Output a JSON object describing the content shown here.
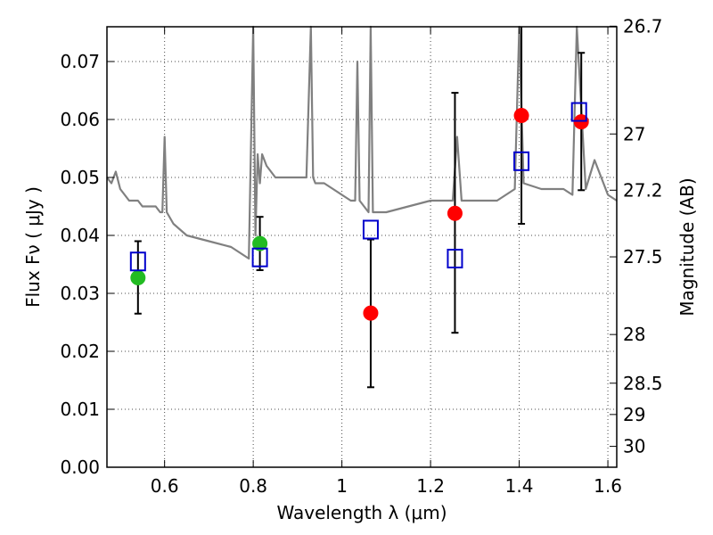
{
  "chart_data": {
    "type": "scatter",
    "xlabel": "Wavelength  λ (μm)",
    "ylabel": "Flux  Fν  ( μJy )",
    "ylabel_right": "Magnitude (AB)",
    "xlim": [
      0.47,
      1.62
    ],
    "ylim": [
      0.0,
      0.076
    ],
    "x_ticks": [
      0.6,
      0.8,
      1.0,
      1.2,
      1.4,
      1.6
    ],
    "x_tick_labels": [
      "0.6",
      "0.8",
      "1",
      "1.2",
      "1.4",
      "1.6"
    ],
    "y_ticks": [
      0.0,
      0.01,
      0.02,
      0.03,
      0.04,
      0.05,
      0.06,
      0.07
    ],
    "y_tick_labels": [
      "0.00",
      "0.01",
      "0.02",
      "0.03",
      "0.04",
      "0.05",
      "0.06",
      "0.07"
    ],
    "right_ticks": [
      {
        "label": "26.7",
        "flux": 0.0761
      },
      {
        "label": "27",
        "flux": 0.0575
      },
      {
        "label": "27.2",
        "flux": 0.0478
      },
      {
        "label": "27.5",
        "flux": 0.0363
      },
      {
        "label": "28",
        "flux": 0.0229
      },
      {
        "label": "28.5",
        "flux": 0.0145
      },
      {
        "label": "29",
        "flux": 0.0091
      },
      {
        "label": "30",
        "flux": 0.0036
      }
    ],
    "grid": true,
    "series": [
      {
        "kind": "spectrum",
        "color": "#808080",
        "x": [
          0.47,
          0.48,
          0.49,
          0.5,
          0.51,
          0.52,
          0.53,
          0.54,
          0.55,
          0.56,
          0.57,
          0.58,
          0.59,
          0.595,
          0.6,
          0.605,
          0.62,
          0.65,
          0.7,
          0.75,
          0.79,
          0.8,
          0.805,
          0.81,
          0.815,
          0.82,
          0.83,
          0.85,
          0.88,
          0.92,
          0.93,
          0.935,
          0.94,
          0.96,
          0.98,
          1.0,
          1.02,
          1.03,
          1.035,
          1.04,
          1.05,
          1.06,
          1.065,
          1.07,
          1.08,
          1.1,
          1.15,
          1.2,
          1.25,
          1.26,
          1.27,
          1.3,
          1.35,
          1.39,
          1.4,
          1.41,
          1.45,
          1.5,
          1.52,
          1.53,
          1.55,
          1.57,
          1.6,
          1.62
        ],
        "y": [
          0.05,
          0.049,
          0.051,
          0.048,
          0.047,
          0.046,
          0.046,
          0.046,
          0.045,
          0.045,
          0.045,
          0.045,
          0.044,
          0.044,
          0.057,
          0.044,
          0.042,
          0.04,
          0.039,
          0.038,
          0.036,
          0.076,
          0.04,
          0.054,
          0.049,
          0.054,
          0.052,
          0.05,
          0.05,
          0.05,
          0.076,
          0.05,
          0.049,
          0.049,
          0.048,
          0.047,
          0.046,
          0.046,
          0.07,
          0.046,
          0.045,
          0.044,
          0.076,
          0.044,
          0.044,
          0.044,
          0.045,
          0.046,
          0.046,
          0.057,
          0.046,
          0.046,
          0.046,
          0.048,
          0.076,
          0.049,
          0.048,
          0.048,
          0.047,
          0.076,
          0.048,
          0.053,
          0.047,
          0.046
        ]
      },
      {
        "kind": "model_squares",
        "color": "#0000cc",
        "points": [
          {
            "x": 0.54,
            "y": 0.0355
          },
          {
            "x": 0.815,
            "y": 0.0362
          },
          {
            "x": 1.065,
            "y": 0.041
          },
          {
            "x": 1.255,
            "y": 0.036
          },
          {
            "x": 1.405,
            "y": 0.0528
          },
          {
            "x": 1.535,
            "y": 0.0613
          }
        ]
      },
      {
        "kind": "detections",
        "color": "#22bb22",
        "points": [
          {
            "x": 0.54,
            "y": 0.0327,
            "err_low": 0.0265,
            "err_high": 0.039
          },
          {
            "x": 0.815,
            "y": 0.0386,
            "err_low": 0.034,
            "err_high": 0.0432
          }
        ]
      },
      {
        "kind": "low_significance",
        "color": "#ff0000",
        "points": [
          {
            "x": 1.065,
            "y": 0.0266,
            "err_low": 0.0138,
            "err_high": 0.0393
          },
          {
            "x": 1.255,
            "y": 0.0438,
            "err_low": 0.0232,
            "err_high": 0.0646
          },
          {
            "x": 1.405,
            "y": 0.0607,
            "err_low": 0.042,
            "err_high": 0.076
          },
          {
            "x": 1.54,
            "y": 0.0596,
            "err_low": 0.0478,
            "err_high": 0.0715
          }
        ]
      }
    ]
  }
}
